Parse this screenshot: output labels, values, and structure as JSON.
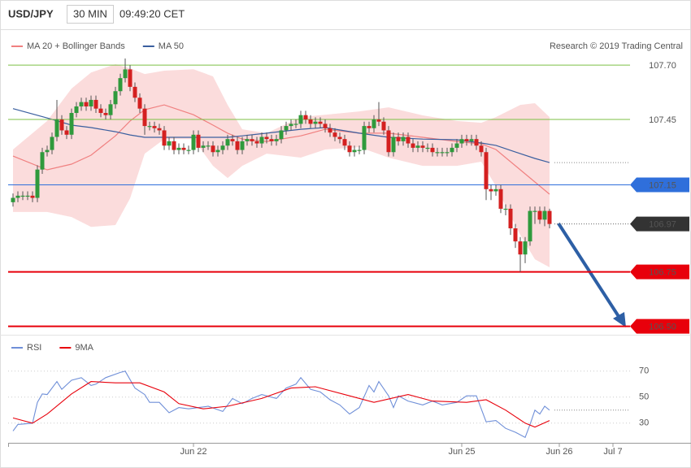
{
  "header": {
    "symbol": "USD/JPY",
    "interval": "30 MIN",
    "time": "09:49:20 CET"
  },
  "credit": "Research © 2019 Trading Central",
  "chart_data": [
    {
      "type": "candlestick",
      "xlim": [
        -1,
        126.5
      ],
      "ylim": [
        106.45,
        107.76
      ],
      "up_color": "#2f9a3c",
      "down_color": "#d42020",
      "wick_color": "#555555",
      "candles": {
        "open": [
          107.07,
          107.09,
          107.1,
          107.1,
          107.1,
          107.09,
          107.22,
          107.3,
          107.31,
          107.37,
          107.45,
          107.4,
          107.38,
          107.48,
          107.51,
          107.53,
          107.51,
          107.54,
          107.5,
          107.48,
          107.47,
          107.52,
          107.58,
          107.64,
          107.68,
          107.6,
          107.55,
          107.5,
          107.42,
          107.42,
          107.41,
          107.4,
          107.33,
          107.35,
          107.31,
          107.32,
          107.31,
          107.31,
          107.38,
          107.32,
          107.33,
          107.33,
          107.3,
          107.31,
          107.33,
          107.36,
          107.35,
          107.31,
          107.35,
          107.36,
          107.35,
          107.34,
          107.37,
          107.36,
          107.35,
          107.36,
          107.4,
          107.42,
          107.43,
          107.43,
          107.47,
          107.45,
          107.43,
          107.44,
          107.43,
          107.41,
          107.39,
          107.37,
          107.36,
          107.33,
          107.3,
          107.31,
          107.31,
          107.42,
          107.41,
          107.45,
          107.44,
          107.4,
          107.3,
          107.37,
          107.35,
          107.37,
          107.34,
          107.32,
          107.33,
          107.32,
          107.32,
          107.3,
          107.3,
          107.3,
          107.3,
          107.32,
          107.34,
          107.36,
          107.35,
          107.36,
          107.33,
          107.3,
          107.13,
          107.12,
          107.13,
          107.04,
          107.04,
          106.95,
          106.89,
          106.83,
          106.89,
          107.03,
          107.03,
          106.99,
          107.03
        ],
        "high": [
          107.11,
          107.12,
          107.12,
          107.12,
          107.12,
          107.24,
          107.32,
          107.33,
          107.39,
          107.54,
          107.47,
          107.42,
          107.5,
          107.53,
          107.55,
          107.55,
          107.56,
          107.56,
          107.52,
          107.5,
          107.54,
          107.6,
          107.66,
          107.73,
          107.7,
          107.62,
          107.57,
          107.52,
          107.44,
          107.44,
          107.43,
          107.42,
          107.37,
          107.37,
          107.34,
          107.34,
          107.33,
          107.4,
          107.4,
          107.35,
          107.35,
          107.35,
          107.33,
          107.35,
          107.38,
          107.38,
          107.37,
          107.37,
          107.38,
          107.38,
          107.37,
          107.39,
          107.39,
          107.38,
          107.38,
          107.42,
          107.44,
          107.45,
          107.45,
          107.49,
          107.49,
          107.47,
          107.46,
          107.46,
          107.45,
          107.43,
          107.41,
          107.39,
          107.38,
          107.35,
          107.33,
          107.33,
          107.44,
          107.44,
          107.47,
          107.53,
          107.46,
          107.42,
          107.39,
          107.39,
          107.39,
          107.39,
          107.36,
          107.35,
          107.35,
          107.34,
          107.34,
          107.32,
          107.32,
          107.32,
          107.34,
          107.36,
          107.38,
          107.38,
          107.38,
          107.38,
          107.35,
          107.32,
          107.15,
          107.15,
          107.15,
          107.06,
          107.06,
          106.97,
          106.91,
          106.91,
          107.05,
          107.05,
          107.05,
          107.05,
          107.04
        ],
        "low": [
          107.05,
          107.07,
          107.08,
          107.08,
          107.07,
          107.07,
          107.2,
          107.28,
          107.29,
          107.35,
          107.38,
          107.36,
          107.36,
          107.46,
          107.49,
          107.49,
          107.49,
          107.48,
          107.46,
          107.45,
          107.45,
          107.5,
          107.56,
          107.62,
          107.58,
          107.53,
          107.48,
          107.38,
          107.4,
          107.39,
          107.38,
          107.31,
          107.31,
          107.29,
          107.29,
          107.29,
          107.29,
          107.29,
          107.3,
          107.3,
          107.31,
          107.28,
          107.28,
          107.29,
          107.31,
          107.33,
          107.29,
          107.29,
          107.33,
          107.33,
          107.32,
          107.32,
          107.34,
          107.33,
          107.33,
          107.34,
          107.38,
          107.4,
          107.41,
          107.41,
          107.43,
          107.41,
          107.41,
          107.41,
          107.39,
          107.37,
          107.35,
          107.34,
          107.31,
          107.28,
          107.28,
          107.29,
          107.29,
          107.39,
          107.39,
          107.42,
          107.38,
          107.28,
          107.28,
          107.33,
          107.33,
          107.32,
          107.3,
          107.3,
          107.3,
          107.3,
          107.28,
          107.28,
          107.28,
          107.28,
          107.28,
          107.3,
          107.32,
          107.33,
          107.33,
          107.31,
          107.28,
          107.08,
          107.08,
          107.1,
          107.02,
          107.01,
          106.92,
          106.86,
          106.75,
          106.79,
          106.87,
          106.97,
          106.97,
          106.96,
          106.95
        ],
        "close": [
          107.09,
          107.1,
          107.1,
          107.1,
          107.09,
          107.22,
          107.3,
          107.31,
          107.37,
          107.45,
          107.4,
          107.38,
          107.48,
          107.51,
          107.53,
          107.51,
          107.54,
          107.5,
          107.48,
          107.47,
          107.52,
          107.58,
          107.64,
          107.68,
          107.6,
          107.55,
          107.5,
          107.42,
          107.42,
          107.41,
          107.4,
          107.33,
          107.35,
          107.31,
          107.32,
          107.31,
          107.31,
          107.38,
          107.32,
          107.33,
          107.33,
          107.3,
          107.31,
          107.33,
          107.36,
          107.35,
          107.31,
          107.35,
          107.36,
          107.35,
          107.34,
          107.37,
          107.36,
          107.35,
          107.36,
          107.4,
          107.42,
          107.43,
          107.43,
          107.47,
          107.45,
          107.43,
          107.44,
          107.43,
          107.41,
          107.39,
          107.37,
          107.36,
          107.33,
          107.3,
          107.31,
          107.31,
          107.42,
          107.41,
          107.45,
          107.44,
          107.4,
          107.3,
          107.37,
          107.35,
          107.37,
          107.34,
          107.32,
          107.33,
          107.32,
          107.32,
          107.3,
          107.3,
          107.3,
          107.3,
          107.32,
          107.34,
          107.36,
          107.35,
          107.36,
          107.33,
          107.3,
          107.13,
          107.12,
          107.13,
          107.04,
          107.04,
          106.95,
          106.89,
          106.83,
          106.89,
          107.03,
          107.03,
          106.99,
          107.03,
          106.97
        ]
      },
      "overlays": [
        {
          "name": "MA 20 + Bollinger Bands",
          "color": "#f08080",
          "x": [
            0,
            7,
            12,
            16,
            21,
            24,
            27,
            31,
            37,
            41,
            44,
            47,
            52,
            59,
            64,
            71,
            77,
            84,
            91,
            96,
            99,
            104,
            107,
            110
          ],
          "values": [
            107.282,
            107.219,
            107.245,
            107.286,
            107.375,
            107.443,
            107.495,
            107.517,
            107.472,
            107.424,
            107.387,
            107.36,
            107.349,
            107.375,
            107.405,
            107.387,
            107.387,
            107.368,
            107.349,
            107.338,
            107.312,
            107.219,
            107.163,
            107.107
          ],
          "upper": [
            107.312,
            107.443,
            107.592,
            107.666,
            107.704,
            107.685,
            107.659,
            107.674,
            107.681,
            107.648,
            107.517,
            107.405,
            107.387,
            107.461,
            107.472,
            107.487,
            107.506,
            107.469,
            107.443,
            107.435,
            107.461,
            107.517,
            107.525,
            107.461
          ],
          "lower": [
            107.025,
            107.025,
            107.002,
            106.957,
            106.965,
            107.088,
            107.293,
            107.36,
            107.36,
            107.237,
            107.181,
            107.237,
            107.293,
            107.275,
            107.312,
            107.323,
            107.275,
            107.237,
            107.237,
            107.256,
            107.144,
            106.92,
            106.808,
            106.771
          ]
        },
        {
          "name": "MA 50",
          "color": "#3a5f9f",
          "x": [
            0,
            7,
            12,
            16,
            21,
            24,
            27,
            31,
            37,
            41,
            44,
            47,
            52,
            59,
            64,
            71,
            77,
            84,
            91,
            96,
            99,
            104,
            107,
            110
          ],
          "values": [
            107.5,
            107.457,
            107.424,
            107.413,
            107.394,
            107.379,
            107.368,
            107.368,
            107.368,
            107.368,
            107.368,
            107.375,
            107.387,
            107.405,
            107.413,
            107.387,
            107.368,
            107.36,
            107.357,
            107.342,
            107.331,
            107.293,
            107.271,
            107.252
          ]
        }
      ],
      "levels": [
        {
          "value": 107.7,
          "label": "107.70",
          "color": "#7cbf45",
          "line": "solid",
          "width": 1,
          "box": false
        },
        {
          "value": 107.45,
          "label": "107.45",
          "color": "#7cbf45",
          "line": "solid",
          "width": 1,
          "box": false
        },
        {
          "value": 107.15,
          "color": "#2f6fdb",
          "line": "solid",
          "width": 1,
          "box": true
        },
        {
          "value": 106.97,
          "color": "#333333",
          "line": "dotted",
          "width": 1,
          "box": true
        },
        {
          "value": 106.75,
          "color": "#e8000b",
          "line": "solid",
          "width": 2,
          "box": true
        },
        {
          "value": 106.5,
          "label": "106.50",
          "color": "#e8000b",
          "line": "solid",
          "width": 2,
          "box": true
        }
      ]
    },
    {
      "type": "line",
      "xlim": [
        -1,
        126.5
      ],
      "ylim": [
        18,
        78
      ],
      "yticks": [
        30,
        50,
        70
      ],
      "grid": true,
      "xticks": [
        {
          "value": 37,
          "label": "Jun 22"
        },
        {
          "value": 92,
          "label": "Jun 25"
        },
        {
          "value": 112,
          "label": "Jun 26"
        },
        {
          "value": 123,
          "label": "Jul 7"
        }
      ],
      "series": [
        {
          "name": "RSI",
          "color": "#6f8fd8",
          "x": [
            0,
            1,
            4,
            5,
            6,
            7,
            9,
            10,
            12,
            14,
            16,
            17,
            19,
            22,
            23,
            25,
            27,
            28,
            30,
            32,
            34,
            36,
            40,
            43,
            45,
            47,
            49,
            51,
            54,
            56,
            58,
            59,
            61,
            63,
            65,
            67,
            69,
            71,
            73,
            74,
            75,
            77,
            78,
            79,
            81,
            84,
            86,
            88,
            91,
            93,
            95,
            97,
            99,
            101,
            103,
            105,
            106,
            107,
            108,
            109,
            110
          ],
          "values": [
            24,
            29,
            30,
            46,
            52.5,
            52,
            62,
            56,
            63,
            65,
            59,
            60,
            65,
            69,
            70,
            57,
            52,
            46,
            46,
            38,
            42,
            41,
            43,
            39,
            49,
            45,
            49,
            52,
            49,
            57,
            60,
            65,
            56,
            54,
            48,
            44,
            37,
            42,
            59,
            54,
            62,
            51,
            42,
            51,
            47,
            44,
            47,
            44,
            46,
            51,
            51,
            31,
            32,
            26,
            23,
            19,
            29,
            40,
            37,
            43,
            40
          ]
        },
        {
          "name": "9MA",
          "color": "#e8000b",
          "x": [
            0,
            4,
            7,
            12,
            16,
            21,
            26,
            31,
            34,
            39,
            44,
            51,
            57,
            62,
            69,
            74,
            81,
            86,
            93,
            97,
            101,
            105,
            107,
            110
          ],
          "values": [
            34,
            30,
            37,
            52.5,
            62,
            61,
            61,
            54,
            45,
            41,
            43,
            49,
            57,
            58,
            51,
            46,
            52,
            47,
            46,
            48,
            40,
            30,
            27,
            32
          ]
        }
      ]
    }
  ]
}
